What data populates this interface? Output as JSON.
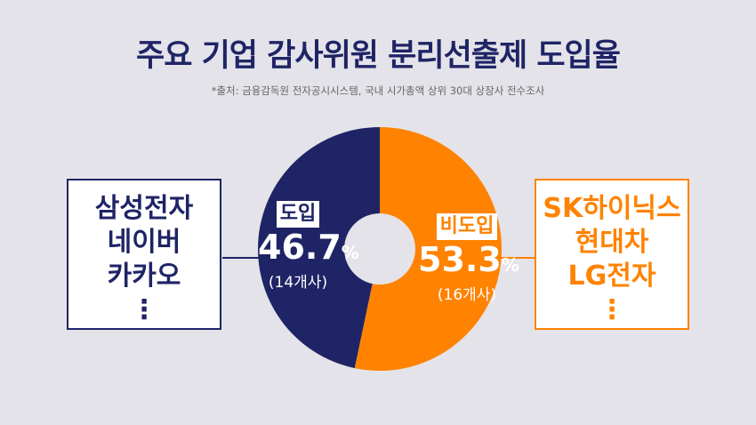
{
  "chart_data": {
    "type": "pie",
    "title": "주요 기업 감사위원 분리선출제 도입율",
    "subtitle": "*출처: 금융감독원 전자공시시스템, 국내 시가총액 상위 30대 상장사 전수조사",
    "slices": [
      {
        "label": "비도입",
        "value": 53.3,
        "value_label": "53.3",
        "unit": "%",
        "count_label": "(16개사)",
        "color": "#ff8200",
        "examples": [
          "SK하이닉스",
          "현대차",
          "LG전자",
          "⋮"
        ]
      },
      {
        "label": "도입",
        "value": 46.7,
        "value_label": "46.7",
        "unit": "%",
        "count_label": "(14개사)",
        "color": "#1f2466",
        "examples": [
          "삼성전자",
          "네이버",
          "카카오",
          "⋮"
        ]
      }
    ]
  }
}
